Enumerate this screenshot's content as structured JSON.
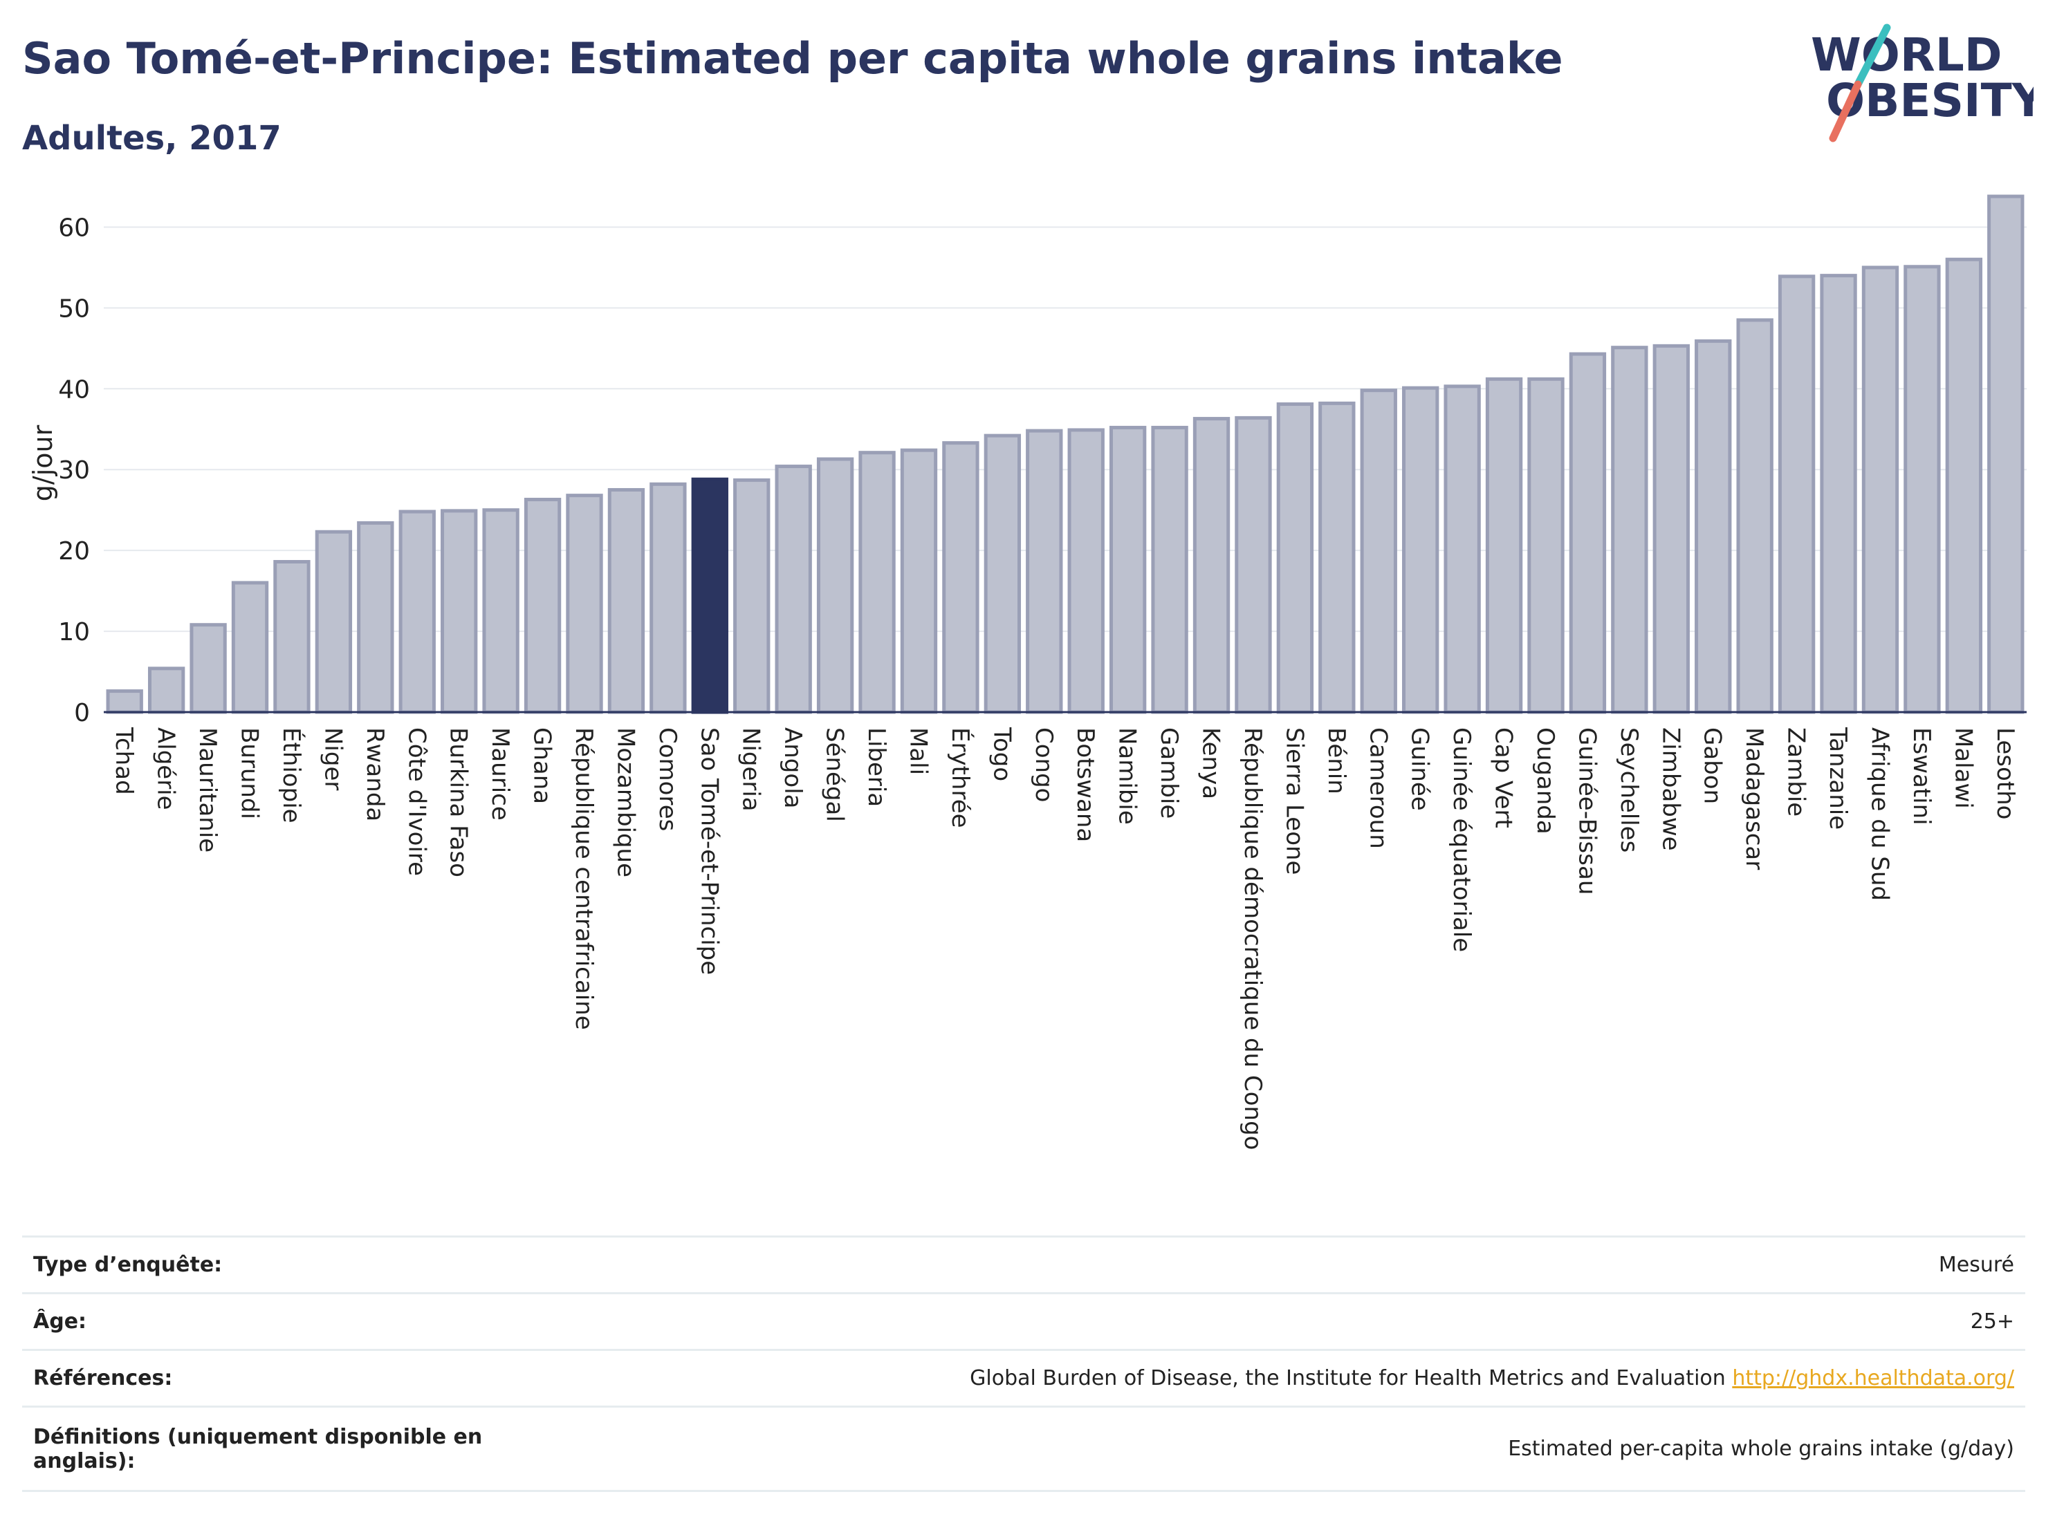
{
  "header": {
    "title": "Sao Tomé-et-Principe: Estimated per capita whole grains intake",
    "subtitle": "Adultes, 2017"
  },
  "logo": {
    "line1": "WORLD",
    "line2": "OBESITY",
    "colors": {
      "text": "#2b3560",
      "slash_top": "#3bbfbf",
      "slash_bottom": "#e8705f"
    }
  },
  "colors": {
    "bar": "#bdc1cf",
    "bar_outline": "#9a9fb6",
    "highlight": "#2b3560",
    "grid": "#e6e9ee",
    "axis": "#2b3560"
  },
  "chart_data": {
    "type": "bar",
    "title": "Sao Tomé-et-Principe: Estimated per capita whole grains intake",
    "subtitle": "Adultes, 2017",
    "xlabel": "",
    "ylabel": "g/jour",
    "ylim": [
      0,
      65
    ],
    "yticks": [
      0,
      10,
      20,
      30,
      40,
      50,
      60
    ],
    "grid": true,
    "legend": "none",
    "highlight": "Sao Tomé-et-Principe",
    "categories": [
      "Tchad",
      "Algérie",
      "Mauritanie",
      "Burundi",
      "Éthiopie",
      "Niger",
      "Rwanda",
      "Côte d'Ivoire",
      "Burkina Faso",
      "Maurice",
      "Ghana",
      "République centrafricaine",
      "Mozambique",
      "Comores",
      "Sao Tomé-et-Principe",
      "Nigeria",
      "Angola",
      "Sénégal",
      "Liberia",
      "Mali",
      "Érythrée",
      "Togo",
      "Congo",
      "Botswana",
      "Namibie",
      "Gambie",
      "Kenya",
      "République démocratique du Congo",
      "Sierra Leone",
      "Bénin",
      "Cameroun",
      "Guinée",
      "Guinée équatoriale",
      "Cap Vert",
      "Ouganda",
      "Guinée-Bissau",
      "Seychelles",
      "Zimbabwe",
      "Gabon",
      "Madagascar",
      "Zambie",
      "Tanzanie",
      "Afrique du Sud",
      "Eswatini",
      "Malawi",
      "Lesotho"
    ],
    "values": [
      2.6,
      5.4,
      10.8,
      16.0,
      18.6,
      22.3,
      23.4,
      24.8,
      24.9,
      25.0,
      26.3,
      26.8,
      27.5,
      28.2,
      28.8,
      28.7,
      30.4,
      31.3,
      32.1,
      32.4,
      33.3,
      34.2,
      34.8,
      34.9,
      35.2,
      35.2,
      36.3,
      36.4,
      38.1,
      38.2,
      39.8,
      40.1,
      40.3,
      41.2,
      41.2,
      44.3,
      45.1,
      45.3,
      45.9,
      48.5,
      53.9,
      54.0,
      55.0,
      55.1,
      56.0,
      63.8
    ]
  },
  "info": {
    "survey_type_label": "Type d’enquête:",
    "survey_type_value": "Mesuré",
    "age_label": "Âge:",
    "age_value": "25+",
    "references_label": "Références:",
    "references_value": "Global Burden of Disease, the Institute for Health Metrics and Evaluation ",
    "references_link": "http://ghdx.healthdata.org/",
    "definitions_label": "Définitions (uniquement disponible en anglais):",
    "definitions_value": "Estimated per-capita whole grains intake (g/day)"
  }
}
